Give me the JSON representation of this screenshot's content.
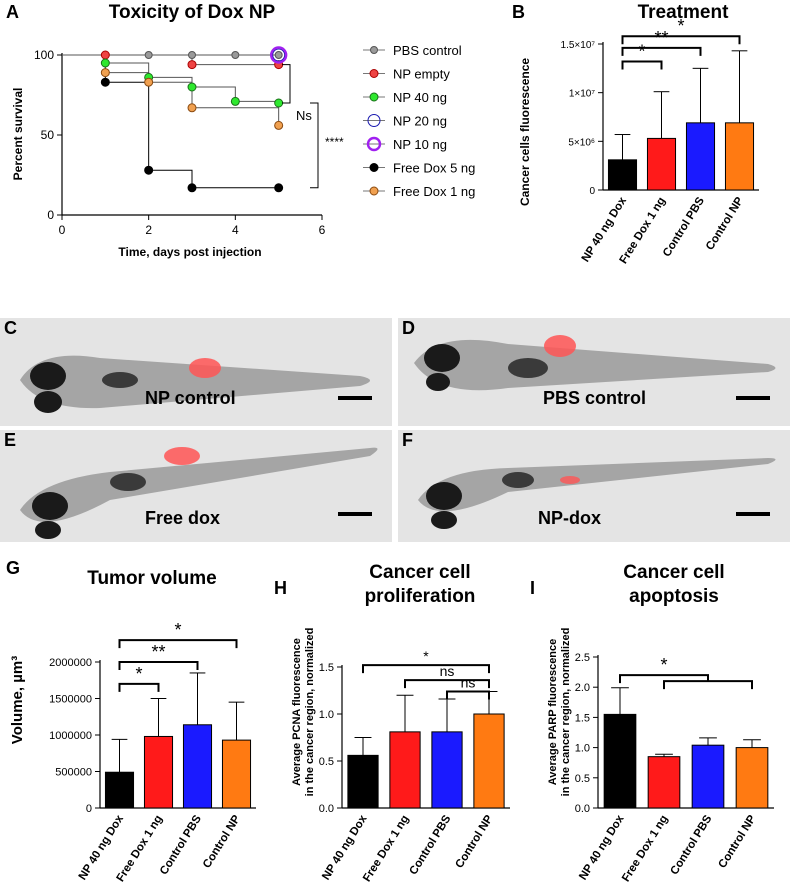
{
  "colors": {
    "black": "#000000",
    "red": "#ff1a1a",
    "blue": "#1a1aff",
    "orange": "#ff7a12",
    "green": "#2ee82e",
    "gray": "#9a9a9a",
    "purple": "#a020f0",
    "navy": "#1a1ab0",
    "light_orange": "#f0a050",
    "salmon": "#ee4444"
  },
  "panels": {
    "A": {
      "letter": "A",
      "title": "Toxicity of Dox NP",
      "xlabel": "Time, days post injection",
      "ylabel": "Percent survival",
      "xticks": [
        "0",
        "2",
        "4",
        "6"
      ],
      "yticks": [
        "0",
        "50",
        "100"
      ],
      "ns_label": "Ns",
      "sig_label": "****",
      "legend": [
        "PBS control",
        "NP empty",
        "NP 40 ng",
        "NP 20 ng",
        "NP 10 ng",
        "Free Dox 5 ng",
        "Free Dox 1 ng"
      ]
    },
    "B": {
      "letter": "B",
      "title": "Treatment",
      "ylabel": "Cancer cells fluorescence",
      "ytick_labels": [
        "0",
        "5×10⁶",
        "1×10⁷",
        "1.5×10⁷"
      ],
      "sig": [
        "*",
        "**",
        "*"
      ]
    },
    "G": {
      "letter": "G",
      "title": "Tumor volume",
      "ylabel": "Volume, µm³",
      "ytick_labels": [
        "0",
        "500000",
        "1000000",
        "1500000",
        "2000000"
      ],
      "sig": [
        "*",
        "**",
        "*"
      ]
    },
    "H": {
      "letter": "H",
      "title_line1": "Cancer cell",
      "title_line2": "proliferation",
      "ylabel_line1": "Average PCNA fluorescence",
      "ylabel_line2": "in the cancer region, normalized",
      "ytick_labels": [
        "0.0",
        "0.5",
        "1.0",
        "1.5"
      ],
      "sig": [
        "*",
        "ns",
        "ns"
      ]
    },
    "I": {
      "letter": "I",
      "title_line1": "Cancer cell",
      "title_line2": "apoptosis",
      "ylabel_line1": "Average PARP fluorescence",
      "ylabel_line2": "in the cancer region, normalized",
      "ytick_labels": [
        "0.0",
        "0.5",
        "1.0",
        "1.5",
        "2.0",
        "2.5"
      ],
      "sig": [
        "*"
      ]
    }
  },
  "images": [
    {
      "letter": "C",
      "label": "NP control"
    },
    {
      "letter": "D",
      "label": "PBS control"
    },
    {
      "letter": "E",
      "label": "Free dox"
    },
    {
      "letter": "F",
      "label": "NP-dox"
    }
  ],
  "chart_data": [
    {
      "type": "line",
      "panel": "A",
      "title": "Toxicity of Dox NP",
      "xlabel": "Time, days post injection",
      "ylabel": "Percent survival",
      "xlim": [
        0,
        6
      ],
      "ylim": [
        0,
        100
      ],
      "series": [
        {
          "name": "PBS control",
          "x": [
            1,
            2,
            3,
            4,
            5
          ],
          "y": [
            100,
            100,
            100,
            100,
            100
          ]
        },
        {
          "name": "NP empty",
          "x": [
            1,
            3,
            5
          ],
          "y": [
            100,
            94,
            94
          ]
        },
        {
          "name": "NP 40 ng",
          "x": [
            1,
            2,
            3,
            4,
            5
          ],
          "y": [
            95,
            86,
            80,
            71,
            70
          ]
        },
        {
          "name": "NP 20 ng",
          "x": [
            5
          ],
          "y": [
            100
          ]
        },
        {
          "name": "NP 10 ng",
          "x": [
            5
          ],
          "y": [
            100
          ]
        },
        {
          "name": "Free Dox 5 ng",
          "x": [
            1,
            2,
            3,
            5
          ],
          "y": [
            83,
            28,
            17,
            17
          ]
        },
        {
          "name": "Free Dox 1 ng",
          "x": [
            1,
            2,
            3,
            5
          ],
          "y": [
            89,
            83,
            67,
            56
          ]
        }
      ]
    },
    {
      "type": "bar",
      "panel": "B",
      "title": "Treatment",
      "ylabel": "Cancer cells fluorescence",
      "categories": [
        "NP 40 ng Dox",
        "Free Dox 1 ng",
        "Control PBS",
        "Control NP"
      ],
      "values": [
        3100000,
        5300000,
        6900000,
        6900000
      ],
      "errors": [
        2600000,
        4800000,
        5600000,
        7400000
      ],
      "ylim": [
        0,
        15000000
      ]
    },
    {
      "type": "bar",
      "panel": "G",
      "title": "Tumor volume",
      "ylabel": "Volume, µm³",
      "categories": [
        "NP 40 ng Dox",
        "Free Dox 1 ng",
        "Control PBS",
        "Control NP"
      ],
      "values": [
        490000,
        980000,
        1140000,
        930000
      ],
      "errors": [
        450000,
        520000,
        710000,
        520000
      ],
      "ylim": [
        0,
        2000000
      ]
    },
    {
      "type": "bar",
      "panel": "H",
      "title": "Cancer cell proliferation",
      "ylabel": "Average PCNA fluorescence in the cancer region, normalized",
      "categories": [
        "NP 40 ng Dox",
        "Free Dox 1 ng",
        "Control PBS",
        "Control NP"
      ],
      "values": [
        0.56,
        0.81,
        0.81,
        1.0
      ],
      "errors": [
        0.19,
        0.39,
        0.35,
        0.24
      ],
      "ylim": [
        0,
        1.5
      ]
    },
    {
      "type": "bar",
      "panel": "I",
      "title": "Cancer cell apoptosis",
      "ylabel": "Average PARP fluorescence in the cancer region, normalized",
      "categories": [
        "NP 40 ng Dox",
        "Free Dox 1 ng",
        "Control PBS",
        "Control NP"
      ],
      "values": [
        1.55,
        0.85,
        1.04,
        1.0
      ],
      "errors": [
        0.44,
        0.04,
        0.12,
        0.13
      ],
      "ylim": [
        0,
        2.5
      ]
    }
  ]
}
